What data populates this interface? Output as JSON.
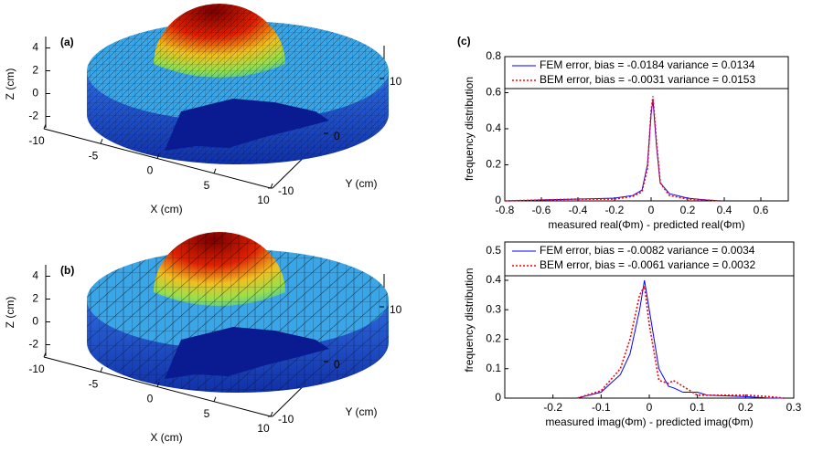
{
  "chart_data": [
    {
      "type": "mesh3d",
      "label": "(a)",
      "xlabel": "X (cm)",
      "ylabel": "Y (cm)",
      "zlabel": "Z (cm)",
      "xlim": [
        -10,
        10
      ],
      "ylim": [
        -10,
        10
      ],
      "zlim": [
        -3,
        5
      ],
      "xticks": [
        -10,
        -5,
        0,
        5,
        10
      ],
      "yticks": [
        -10,
        0,
        10
      ],
      "zticks": [
        -2,
        0,
        2,
        4
      ]
    },
    {
      "type": "mesh3d",
      "label": "(b)",
      "xlabel": "X (cm)",
      "ylabel": "Y (cm)",
      "zlabel": "Z (cm)",
      "xlim": [
        -10,
        10
      ],
      "ylim": [
        -10,
        10
      ],
      "zlim": [
        -3,
        5
      ],
      "xticks": [
        -10,
        -5,
        0,
        5,
        10
      ],
      "yticks": [
        -10,
        0,
        10
      ],
      "zticks": [
        -2,
        0,
        2,
        4
      ]
    },
    {
      "type": "line",
      "label": "(c)",
      "xlabel": "measured real(Φm) - predicted real(Φm)",
      "ylabel": "frequency distribution",
      "xlim": [
        -0.8,
        0.75
      ],
      "ylim": [
        0,
        0.8
      ],
      "xticks": [
        -0.8,
        -0.6,
        -0.4,
        -0.2,
        0,
        0.2,
        0.4,
        0.6
      ],
      "yticks": [
        0,
        0.2,
        0.4,
        0.6,
        0.8
      ],
      "x": [
        -0.8,
        -0.6,
        -0.4,
        -0.2,
        -0.1,
        -0.05,
        -0.02,
        0,
        0.01,
        0.03,
        0.05,
        0.1,
        0.2,
        0.3,
        0.38
      ],
      "series": [
        {
          "name": "FEM error, bias = -0.0184 variance = 0.0134",
          "color": "#0000ff",
          "dash": "none",
          "values": [
            0,
            0.005,
            0.01,
            0.015,
            0.03,
            0.06,
            0.2,
            0.48,
            0.56,
            0.3,
            0.1,
            0.04,
            0.015,
            0.005,
            0
          ]
        },
        {
          "name": "BEM error, bias = -0.0031 variance = 0.0153",
          "color": "#ff0000",
          "dash": "2,2",
          "values": [
            0,
            0.005,
            0.01,
            0.01,
            0.025,
            0.05,
            0.18,
            0.5,
            0.58,
            0.32,
            0.1,
            0.03,
            0.01,
            0.005,
            0
          ]
        }
      ]
    },
    {
      "type": "line",
      "xlabel": "measured imag(Φm) - predicted imag(Φm)",
      "ylabel": "frequency distribution",
      "xlim": [
        -0.3,
        0.3
      ],
      "ylim": [
        0,
        0.53
      ],
      "xticks": [
        -0.2,
        -0.1,
        0,
        0.1,
        0.2,
        0.3
      ],
      "yticks": [
        0,
        0.1,
        0.2,
        0.3,
        0.4,
        0.5
      ],
      "x": [
        -0.15,
        -0.1,
        -0.06,
        -0.04,
        -0.02,
        -0.01,
        0,
        0.02,
        0.04,
        0.05,
        0.07,
        0.1,
        0.12,
        0.2,
        0.25,
        0.28
      ],
      "series": [
        {
          "name": "FEM error, bias = -0.0082 variance = 0.0034",
          "color": "#0000ff",
          "dash": "none",
          "values": [
            0,
            0.02,
            0.08,
            0.15,
            0.3,
            0.4,
            0.3,
            0.1,
            0.04,
            0.035,
            0.02,
            0.02,
            0.01,
            0.005,
            0,
            0
          ]
        },
        {
          "name": "BEM error, bias = -0.0061 variance = 0.0032",
          "color": "#ff0000",
          "dash": "2,2",
          "values": [
            0,
            0.025,
            0.1,
            0.2,
            0.35,
            0.38,
            0.25,
            0.06,
            0.05,
            0.06,
            0.04,
            0.01,
            0.01,
            0.01,
            0.005,
            0
          ]
        }
      ]
    }
  ]
}
